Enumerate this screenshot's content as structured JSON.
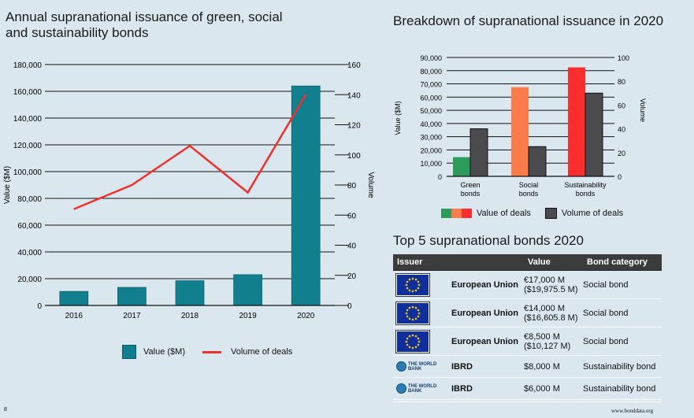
{
  "left_panel": {
    "title": "Annual supranational issuance of green, social and sustainability bonds",
    "legend": {
      "bar_label": "Value ($M)",
      "line_label": "Volume of deals"
    }
  },
  "right_panel": {
    "title": "Breakdown of supranational issuance in 2020",
    "legend": {
      "value_label": "Value of deals",
      "volume_label": "Volume of deals"
    }
  },
  "top5": {
    "title": "Top 5 supranational bonds 2020",
    "headers": {
      "issuer": "Issuer",
      "value": "Value",
      "category": "Bond category"
    },
    "rows": [
      {
        "logo": "eu-flag-icon",
        "issuer": "European Union",
        "value_line1": "€17,000 M",
        "value_line2": "($19,975.5 M)",
        "category": "Social bond"
      },
      {
        "logo": "eu-flag-icon",
        "issuer": "European Union",
        "value_line1": "€14,000 M",
        "value_line2": "($16,605.8 M)",
        "category": "Social bond"
      },
      {
        "logo": "eu-flag-icon",
        "issuer": "European Union",
        "value_line1": "€8,500 M",
        "value_line2": "($10,127 M)",
        "category": "Social bond"
      },
      {
        "logo": "world-bank-logo",
        "logo_text": "THE WORLD BANK",
        "issuer": "IBRD",
        "value_line1": "$8,000 M",
        "value_line2": "",
        "category": "Sustainability bond"
      },
      {
        "logo": "world-bank-logo",
        "logo_text": "THE WORLD BANK",
        "issuer": "IBRD",
        "value_line1": "$6,000 M",
        "value_line2": "",
        "category": "Sustainability bond"
      }
    ]
  },
  "footer": {
    "page_number": "8",
    "website": "www.bonddata.org"
  },
  "colors": {
    "teal": "#127f8e",
    "red_line": "#f0302a",
    "green": "#2e9a5b",
    "orange": "#fb7b4a",
    "red": "#fb2e2e",
    "dark_grey": "#4a4a4f",
    "background": "#dbe7ef"
  },
  "chart_data": [
    {
      "type": "bar",
      "title": "Annual supranational issuance of green, social and sustainability bonds",
      "categories": [
        "2016",
        "2017",
        "2018",
        "2019",
        "2020"
      ],
      "series": [
        {
          "name": "Value ($M)",
          "type": "bar",
          "axis": "left",
          "values": [
            10500,
            13500,
            18500,
            23000,
            164000
          ]
        },
        {
          "name": "Volume of deals",
          "type": "line",
          "axis": "right",
          "values": [
            64,
            80,
            106,
            75,
            140
          ]
        }
      ],
      "ylabel": "Value ($M)",
      "ylabel_right": "Volume",
      "ylim": [
        0,
        180000
      ],
      "ylim_right": [
        0,
        160
      ],
      "yticks": [
        "0",
        "20,000",
        "40,000",
        "60,000",
        "80,000",
        "100,000",
        "120,000",
        "140,000",
        "160,000",
        "180,000"
      ],
      "yticks_right": [
        "0",
        "20",
        "40",
        "60",
        "80",
        "100",
        "120",
        "140",
        "160"
      ],
      "grid": true,
      "legend": "bottom"
    },
    {
      "type": "bar",
      "title": "Breakdown of supranational issuance in 2020",
      "categories": [
        "Green bonds",
        "Social bonds",
        "Sustainability bonds"
      ],
      "series": [
        {
          "name": "Value of deals",
          "axis": "left",
          "values": [
            14500,
            67500,
            82500
          ],
          "colors": [
            "#2e9a5b",
            "#fb7b4a",
            "#fb2e2e"
          ]
        },
        {
          "name": "Volume of deals",
          "axis": "right",
          "values": [
            40,
            25,
            70
          ],
          "color": "#4a4a4f"
        }
      ],
      "ylabel": "Value ($M)",
      "ylabel_right": "Volume",
      "ylim": [
        0,
        90000
      ],
      "ylim_right": [
        0,
        100
      ],
      "yticks": [
        "0",
        "10,000",
        "20,000",
        "30,000",
        "40,000",
        "50,000",
        "60,000",
        "70,000",
        "80,000",
        "90,000"
      ],
      "yticks_right": [
        "0",
        "20",
        "40",
        "60",
        "80",
        "100"
      ],
      "grid": true,
      "legend": "bottom"
    }
  ]
}
